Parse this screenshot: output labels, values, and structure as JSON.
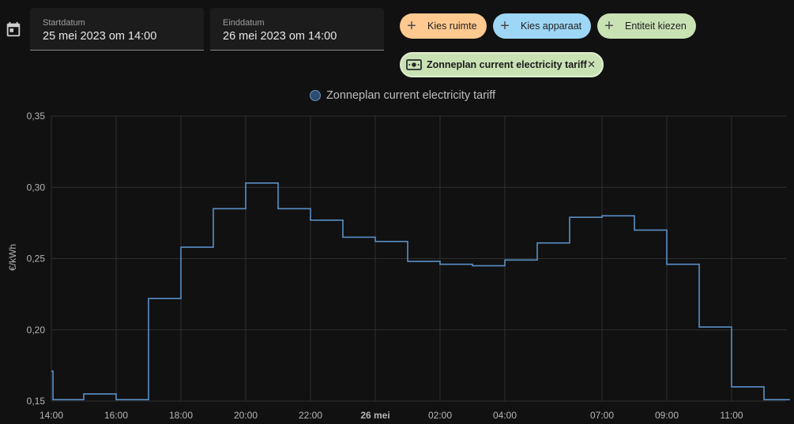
{
  "toolbar": {
    "start_label": "Startdatum",
    "start_value": "25 mei 2023 om 14:00",
    "end_label": "Einddatum",
    "end_value": "26 mei 2023 om 14:00",
    "chip_room": "Kies ruimte",
    "chip_device": "Kies apparaat",
    "chip_entity": "Entiteit kiezen",
    "selected_entity": "Zonneplan current electricity tariff",
    "colors": {
      "room": "#ffc990",
      "device": "#9ed6f5",
      "entity": "#c8e2b4"
    }
  },
  "legend": {
    "series_name": "Zonneplan current electricity tariff"
  },
  "chart_data": {
    "type": "line",
    "step": true,
    "ylabel": "€/kWh",
    "ylim": [
      0.15,
      0.35
    ],
    "yticks": [
      "0,15",
      "0,20",
      "0,25",
      "0,30",
      "0,35"
    ],
    "ytick_values": [
      0.15,
      0.2,
      0.25,
      0.3,
      0.35
    ],
    "xlim_hours": [
      0,
      22.8
    ],
    "xticks": [
      {
        "label": "14:00",
        "hour": 0,
        "bold": false
      },
      {
        "label": "16:00",
        "hour": 2,
        "bold": false
      },
      {
        "label": "18:00",
        "hour": 4,
        "bold": false
      },
      {
        "label": "20:00",
        "hour": 6,
        "bold": false
      },
      {
        "label": "22:00",
        "hour": 8,
        "bold": false
      },
      {
        "label": "26 mei",
        "hour": 10,
        "bold": true
      },
      {
        "label": "02:00",
        "hour": 12,
        "bold": false
      },
      {
        "label": "04:00",
        "hour": 14,
        "bold": false
      },
      {
        "label": "07:00",
        "hour": 17,
        "bold": false
      },
      {
        "label": "09:00",
        "hour": 19,
        "bold": false
      },
      {
        "label": "11:00",
        "hour": 21,
        "bold": false
      }
    ],
    "grid_hours": [
      0,
      2,
      4,
      6,
      8,
      10,
      12,
      14,
      17,
      19,
      21
    ],
    "series": [
      {
        "name": "Zonneplan current electricity tariff",
        "color": "#5b8fc7",
        "points": [
          {
            "x": 0.0,
            "y": 0.171
          },
          {
            "x": 0.05,
            "y": 0.151
          },
          {
            "x": 1.0,
            "y": 0.155
          },
          {
            "x": 2.0,
            "y": 0.151
          },
          {
            "x": 3.0,
            "y": 0.222
          },
          {
            "x": 4.0,
            "y": 0.258
          },
          {
            "x": 5.0,
            "y": 0.285
          },
          {
            "x": 6.0,
            "y": 0.303
          },
          {
            "x": 7.0,
            "y": 0.285
          },
          {
            "x": 8.0,
            "y": 0.277
          },
          {
            "x": 9.0,
            "y": 0.265
          },
          {
            "x": 10.0,
            "y": 0.262
          },
          {
            "x": 11.0,
            "y": 0.248
          },
          {
            "x": 12.0,
            "y": 0.246
          },
          {
            "x": 13.0,
            "y": 0.245
          },
          {
            "x": 14.0,
            "y": 0.249
          },
          {
            "x": 15.0,
            "y": 0.261
          },
          {
            "x": 16.0,
            "y": 0.279
          },
          {
            "x": 17.0,
            "y": 0.28
          },
          {
            "x": 18.0,
            "y": 0.27
          },
          {
            "x": 19.0,
            "y": 0.246
          },
          {
            "x": 20.0,
            "y": 0.202
          },
          {
            "x": 21.0,
            "y": 0.16
          },
          {
            "x": 22.0,
            "y": 0.151
          }
        ]
      }
    ]
  }
}
